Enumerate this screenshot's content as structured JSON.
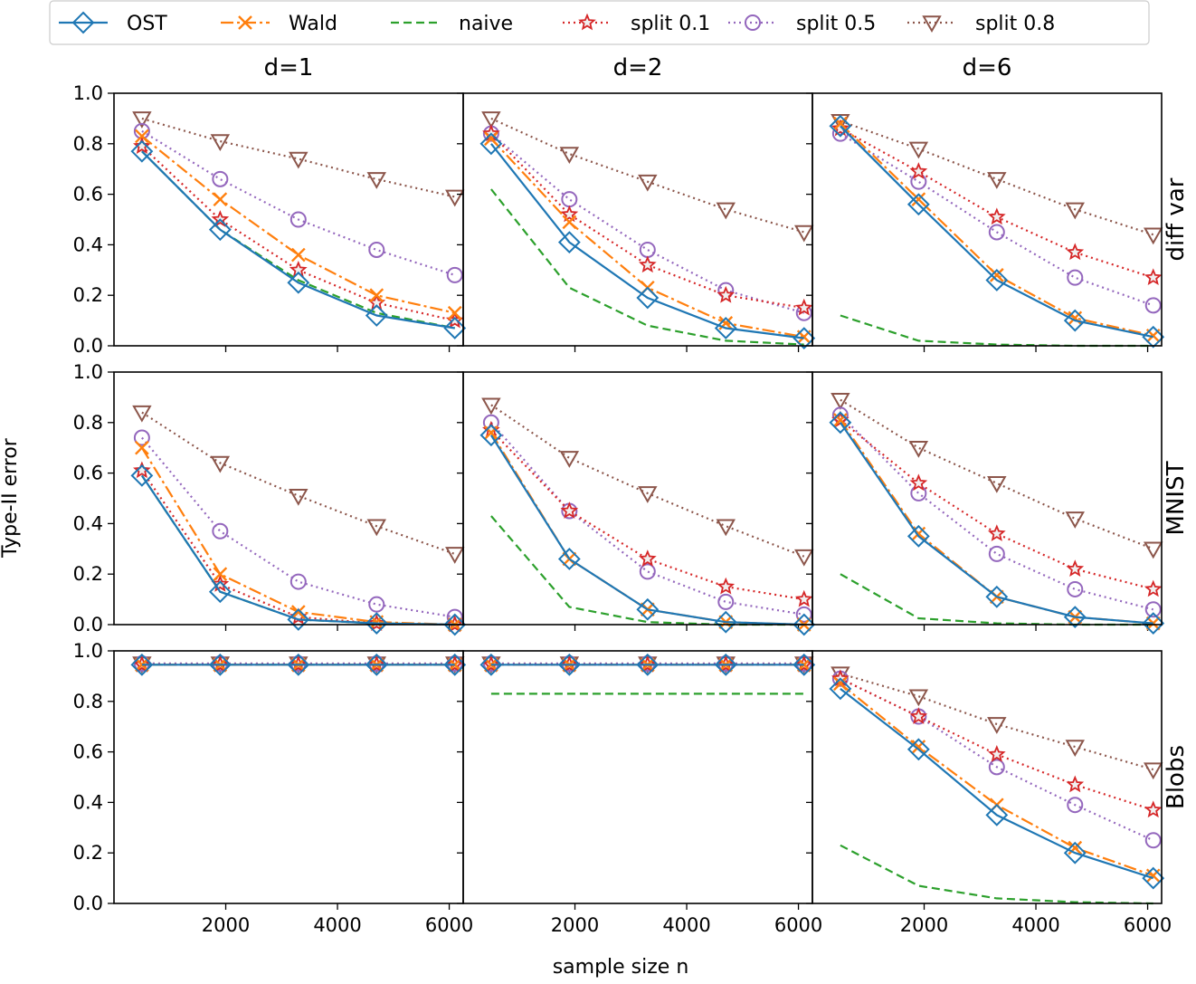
{
  "figure": {
    "ylabel": "Type-II error",
    "xlabel": "sample size n",
    "col_titles": [
      "d=1",
      "d=2",
      "d=6"
    ],
    "row_titles": [
      "diff var",
      "MNIST",
      "Blobs"
    ],
    "x_ticks": [
      2000,
      4000,
      6000
    ],
    "y_ticks": [
      "0.0",
      "0.2",
      "0.4",
      "0.6",
      "0.8",
      "1.0"
    ],
    "xlim": [
      0,
      6250
    ],
    "ylim": [
      0,
      1
    ]
  },
  "legend": [
    {
      "name": "OST",
      "color": "#1f77b4",
      "dash": "",
      "marker": "diamond"
    },
    {
      "name": "Wald",
      "color": "#ff7f0e",
      "dash": "14 4 3 4",
      "marker": "x"
    },
    {
      "name": "naive",
      "color": "#2ca02c",
      "dash": "9 5",
      "marker": "none"
    },
    {
      "name": "split 0.1",
      "color": "#d62728",
      "dash": "2 4",
      "marker": "star"
    },
    {
      "name": "split 0.5",
      "color": "#9467bd",
      "dash": "2 4",
      "marker": "circle"
    },
    {
      "name": "split 0.8",
      "color": "#8c564b",
      "dash": "2 4",
      "marker": "triangle_down"
    }
  ],
  "chart_data": {
    "type": "line",
    "x": [
      500,
      1900,
      3300,
      4700,
      6100
    ],
    "xlabel": "sample size n",
    "ylabel": "Type-II error",
    "ylim": [
      0,
      1
    ],
    "panels": [
      {
        "row": "diff var",
        "col": "d=1",
        "series": [
          {
            "name": "OST",
            "values": [
              0.77,
              0.46,
              0.25,
              0.12,
              0.07
            ]
          },
          {
            "name": "Wald",
            "values": [
              0.83,
              0.58,
              0.36,
              0.2,
              0.13
            ]
          },
          {
            "name": "naive",
            "values": [
              0.77,
              0.46,
              0.26,
              0.13,
              0.07
            ]
          },
          {
            "name": "split 0.1",
            "values": [
              0.79,
              0.5,
              0.3,
              0.17,
              0.1
            ]
          },
          {
            "name": "split 0.5",
            "values": [
              0.85,
              0.66,
              0.5,
              0.38,
              0.28
            ]
          },
          {
            "name": "split 0.8",
            "values": [
              0.9,
              0.81,
              0.74,
              0.66,
              0.59
            ]
          }
        ]
      },
      {
        "row": "diff var",
        "col": "d=2",
        "series": [
          {
            "name": "OST",
            "values": [
              0.8,
              0.41,
              0.19,
              0.07,
              0.03
            ]
          },
          {
            "name": "Wald",
            "values": [
              0.82,
              0.49,
              0.23,
              0.09,
              0.035
            ]
          },
          {
            "name": "naive",
            "values": [
              0.62,
              0.23,
              0.08,
              0.02,
              0.005
            ]
          },
          {
            "name": "split 0.1",
            "values": [
              0.84,
              0.52,
              0.32,
              0.2,
              0.15
            ]
          },
          {
            "name": "split 0.5",
            "values": [
              0.84,
              0.58,
              0.38,
              0.22,
              0.13
            ]
          },
          {
            "name": "split 0.8",
            "values": [
              0.9,
              0.76,
              0.65,
              0.54,
              0.45
            ]
          }
        ]
      },
      {
        "row": "diff var",
        "col": "d=6",
        "series": [
          {
            "name": "OST",
            "values": [
              0.87,
              0.56,
              0.26,
              0.1,
              0.035
            ]
          },
          {
            "name": "Wald",
            "values": [
              0.88,
              0.58,
              0.28,
              0.11,
              0.04
            ]
          },
          {
            "name": "naive",
            "values": [
              0.12,
              0.02,
              0.005,
              0.0,
              0.0
            ]
          },
          {
            "name": "split 0.1",
            "values": [
              0.86,
              0.69,
              0.51,
              0.37,
              0.27
            ]
          },
          {
            "name": "split 0.5",
            "values": [
              0.84,
              0.65,
              0.45,
              0.27,
              0.16
            ]
          },
          {
            "name": "split 0.8",
            "values": [
              0.89,
              0.78,
              0.66,
              0.54,
              0.44
            ]
          }
        ]
      },
      {
        "row": "MNIST",
        "col": "d=1",
        "series": [
          {
            "name": "OST",
            "values": [
              0.59,
              0.13,
              0.02,
              0.005,
              0.0
            ]
          },
          {
            "name": "Wald",
            "values": [
              0.7,
              0.2,
              0.05,
              0.01,
              0.0
            ]
          },
          {
            "name": "naive",
            "values": [
              0.59,
              0.13,
              0.02,
              0.005,
              0.0
            ]
          },
          {
            "name": "split 0.1",
            "values": [
              0.61,
              0.16,
              0.03,
              0.005,
              0.0
            ]
          },
          {
            "name": "split 0.5",
            "values": [
              0.74,
              0.37,
              0.17,
              0.08,
              0.03
            ]
          },
          {
            "name": "split 0.8",
            "values": [
              0.84,
              0.64,
              0.51,
              0.39,
              0.28
            ]
          }
        ]
      },
      {
        "row": "MNIST",
        "col": "d=2",
        "series": [
          {
            "name": "OST",
            "values": [
              0.75,
              0.26,
              0.06,
              0.01,
              0.0
            ]
          },
          {
            "name": "Wald",
            "values": [
              0.76,
              0.26,
              0.06,
              0.01,
              0.0
            ]
          },
          {
            "name": "naive",
            "values": [
              0.43,
              0.07,
              0.01,
              0.0,
              0.0
            ]
          },
          {
            "name": "split 0.1",
            "values": [
              0.77,
              0.45,
              0.26,
              0.15,
              0.1
            ]
          },
          {
            "name": "split 0.5",
            "values": [
              0.8,
              0.45,
              0.21,
              0.09,
              0.04
            ]
          },
          {
            "name": "split 0.8",
            "values": [
              0.87,
              0.66,
              0.52,
              0.39,
              0.27
            ]
          }
        ]
      },
      {
        "row": "MNIST",
        "col": "d=6",
        "series": [
          {
            "name": "OST",
            "values": [
              0.8,
              0.35,
              0.11,
              0.03,
              0.005
            ]
          },
          {
            "name": "Wald",
            "values": [
              0.81,
              0.36,
              0.11,
              0.03,
              0.005
            ]
          },
          {
            "name": "naive",
            "values": [
              0.2,
              0.025,
              0.005,
              0.0,
              0.0
            ]
          },
          {
            "name": "split 0.1",
            "values": [
              0.81,
              0.56,
              0.36,
              0.22,
              0.14
            ]
          },
          {
            "name": "split 0.5",
            "values": [
              0.83,
              0.52,
              0.28,
              0.14,
              0.06
            ]
          },
          {
            "name": "split 0.8",
            "values": [
              0.89,
              0.7,
              0.56,
              0.42,
              0.3
            ]
          }
        ]
      },
      {
        "row": "Blobs",
        "col": "d=1",
        "series": [
          {
            "name": "OST",
            "values": [
              0.945,
              0.945,
              0.945,
              0.945,
              0.945
            ]
          },
          {
            "name": "Wald",
            "values": [
              0.945,
              0.945,
              0.945,
              0.945,
              0.945
            ]
          },
          {
            "name": "naive",
            "values": [
              0.945,
              0.945,
              0.945,
              0.945,
              0.945
            ]
          },
          {
            "name": "split 0.1",
            "values": [
              0.945,
              0.945,
              0.945,
              0.945,
              0.945
            ]
          },
          {
            "name": "split 0.5",
            "values": [
              0.95,
              0.95,
              0.95,
              0.95,
              0.95
            ]
          },
          {
            "name": "split 0.8",
            "values": [
              0.95,
              0.95,
              0.95,
              0.95,
              0.95
            ]
          }
        ]
      },
      {
        "row": "Blobs",
        "col": "d=2",
        "series": [
          {
            "name": "OST",
            "values": [
              0.945,
              0.945,
              0.945,
              0.945,
              0.945
            ]
          },
          {
            "name": "Wald",
            "values": [
              0.945,
              0.945,
              0.945,
              0.945,
              0.945
            ]
          },
          {
            "name": "naive",
            "values": [
              0.83,
              0.83,
              0.83,
              0.83,
              0.83
            ]
          },
          {
            "name": "split 0.1",
            "values": [
              0.945,
              0.945,
              0.945,
              0.945,
              0.945
            ]
          },
          {
            "name": "split 0.5",
            "values": [
              0.95,
              0.95,
              0.95,
              0.95,
              0.95
            ]
          },
          {
            "name": "split 0.8",
            "values": [
              0.95,
              0.95,
              0.95,
              0.95,
              0.95
            ]
          }
        ]
      },
      {
        "row": "Blobs",
        "col": "d=6",
        "series": [
          {
            "name": "OST",
            "values": [
              0.85,
              0.61,
              0.35,
              0.2,
              0.1
            ]
          },
          {
            "name": "Wald",
            "values": [
              0.87,
              0.62,
              0.39,
              0.22,
              0.11
            ]
          },
          {
            "name": "naive",
            "values": [
              0.23,
              0.07,
              0.02,
              0.005,
              0.0
            ]
          },
          {
            "name": "split 0.1",
            "values": [
              0.89,
              0.74,
              0.59,
              0.47,
              0.37
            ]
          },
          {
            "name": "split 0.5",
            "values": [
              0.89,
              0.74,
              0.54,
              0.39,
              0.25
            ]
          },
          {
            "name": "split 0.8",
            "values": [
              0.91,
              0.82,
              0.71,
              0.62,
              0.53
            ]
          }
        ]
      }
    ]
  }
}
